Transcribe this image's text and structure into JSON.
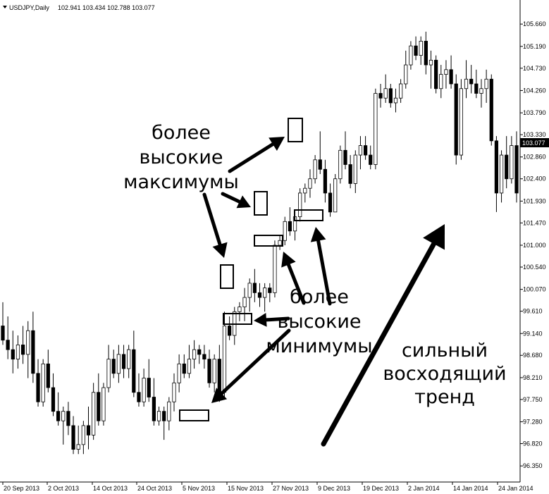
{
  "chart_data": {
    "type": "candlestick",
    "symbol_label": "USDJPY,Daily",
    "ohlc_header": "102.941 103.434 102.788 103.077",
    "current_price": 103.077,
    "current_price_label": "103.077",
    "ylim": [
      96.1,
      105.9
    ],
    "y_ticks": [
      "105.660",
      "105.190",
      "104.730",
      "104.260",
      "103.790",
      "103.330",
      "102.860",
      "102.400",
      "101.930",
      "101.470",
      "101.000",
      "100.540",
      "100.070",
      "99.610",
      "99.140",
      "98.680",
      "98.210",
      "97.750",
      "97.280",
      "96.820",
      "96.350"
    ],
    "x_ticks": [
      "20 Sep 2013",
      "2 Oct 2013",
      "14 Oct 2013",
      "24 Oct 2013",
      "5 Nov 2013",
      "15 Nov 2013",
      "27 Nov 2013",
      "9 Dec 2013",
      "19 Dec 2013",
      "2 Jan 2014",
      "14 Jan 2014",
      "24 Jan 2014"
    ],
    "candles": [
      {
        "o": 99.3,
        "h": 99.8,
        "l": 98.9,
        "c": 99.0
      },
      {
        "o": 99.0,
        "h": 99.5,
        "l": 98.6,
        "c": 98.8
      },
      {
        "o": 98.8,
        "h": 99.2,
        "l": 98.3,
        "c": 98.6
      },
      {
        "o": 98.6,
        "h": 99.1,
        "l": 98.4,
        "c": 98.9
      },
      {
        "o": 98.9,
        "h": 99.3,
        "l": 98.5,
        "c": 98.7
      },
      {
        "o": 98.7,
        "h": 99.4,
        "l": 98.2,
        "c": 99.2
      },
      {
        "o": 99.2,
        "h": 99.6,
        "l": 98.1,
        "c": 98.3
      },
      {
        "o": 98.3,
        "h": 98.6,
        "l": 97.6,
        "c": 97.7
      },
      {
        "o": 97.7,
        "h": 98.6,
        "l": 97.6,
        "c": 98.5
      },
      {
        "o": 98.5,
        "h": 98.8,
        "l": 97.9,
        "c": 98.0
      },
      {
        "o": 98.0,
        "h": 98.3,
        "l": 97.4,
        "c": 97.5
      },
      {
        "o": 97.5,
        "h": 97.9,
        "l": 97.2,
        "c": 97.3
      },
      {
        "o": 97.3,
        "h": 97.6,
        "l": 96.8,
        "c": 97.5
      },
      {
        "o": 97.5,
        "h": 97.7,
        "l": 97.0,
        "c": 97.2
      },
      {
        "o": 97.2,
        "h": 97.4,
        "l": 96.6,
        "c": 96.7
      },
      {
        "o": 96.7,
        "h": 97.2,
        "l": 96.6,
        "c": 96.8
      },
      {
        "o": 96.8,
        "h": 97.3,
        "l": 96.6,
        "c": 97.2
      },
      {
        "o": 97.2,
        "h": 97.6,
        "l": 96.7,
        "c": 97.0
      },
      {
        "o": 97.0,
        "h": 98.1,
        "l": 96.9,
        "c": 97.9
      },
      {
        "o": 97.9,
        "h": 98.3,
        "l": 97.2,
        "c": 97.3
      },
      {
        "o": 97.3,
        "h": 98.1,
        "l": 97.2,
        "c": 98.0
      },
      {
        "o": 98.0,
        "h": 98.9,
        "l": 97.9,
        "c": 98.6
      },
      {
        "o": 98.6,
        "h": 98.8,
        "l": 98.2,
        "c": 98.3
      },
      {
        "o": 98.3,
        "h": 98.9,
        "l": 98.1,
        "c": 98.7
      },
      {
        "o": 98.7,
        "h": 98.9,
        "l": 98.2,
        "c": 98.4
      },
      {
        "o": 98.4,
        "h": 98.9,
        "l": 98.2,
        "c": 98.8
      },
      {
        "o": 98.8,
        "h": 99.2,
        "l": 97.8,
        "c": 97.9
      },
      {
        "o": 97.9,
        "h": 98.3,
        "l": 97.6,
        "c": 97.7
      },
      {
        "o": 97.7,
        "h": 98.4,
        "l": 97.6,
        "c": 98.2
      },
      {
        "o": 98.2,
        "h": 98.6,
        "l": 97.7,
        "c": 97.8
      },
      {
        "o": 97.8,
        "h": 98.2,
        "l": 97.2,
        "c": 97.3
      },
      {
        "o": 97.3,
        "h": 97.6,
        "l": 97.2,
        "c": 97.5
      },
      {
        "o": 97.5,
        "h": 97.6,
        "l": 96.9,
        "c": 97.3
      },
      {
        "o": 97.3,
        "h": 97.8,
        "l": 97.1,
        "c": 97.7
      },
      {
        "o": 97.7,
        "h": 98.3,
        "l": 97.5,
        "c": 98.1
      },
      {
        "o": 98.1,
        "h": 98.7,
        "l": 97.9,
        "c": 98.5
      },
      {
        "o": 98.5,
        "h": 98.7,
        "l": 98.2,
        "c": 98.3
      },
      {
        "o": 98.3,
        "h": 98.9,
        "l": 98.2,
        "c": 98.6
      },
      {
        "o": 98.6,
        "h": 99.0,
        "l": 98.4,
        "c": 98.8
      },
      {
        "o": 98.8,
        "h": 98.9,
        "l": 98.5,
        "c": 98.7
      },
      {
        "o": 98.7,
        "h": 98.9,
        "l": 98.4,
        "c": 98.6
      },
      {
        "o": 98.6,
        "h": 98.8,
        "l": 98.0,
        "c": 98.1
      },
      {
        "o": 98.1,
        "h": 98.7,
        "l": 97.9,
        "c": 98.6
      },
      {
        "o": 98.6,
        "h": 98.9,
        "l": 97.7,
        "c": 97.9
      },
      {
        "o": 97.9,
        "h": 99.6,
        "l": 97.8,
        "c": 99.3
      },
      {
        "o": 99.3,
        "h": 99.5,
        "l": 99.0,
        "c": 99.1
      },
      {
        "o": 99.1,
        "h": 99.7,
        "l": 98.9,
        "c": 99.6
      },
      {
        "o": 99.6,
        "h": 99.8,
        "l": 99.4,
        "c": 99.7
      },
      {
        "o": 99.7,
        "h": 100.1,
        "l": 99.4,
        "c": 99.9
      },
      {
        "o": 99.9,
        "h": 100.3,
        "l": 99.6,
        "c": 100.2
      },
      {
        "o": 100.2,
        "h": 100.5,
        "l": 99.8,
        "c": 100.0
      },
      {
        "o": 100.0,
        "h": 100.2,
        "l": 99.7,
        "c": 99.9
      },
      {
        "o": 99.9,
        "h": 100.2,
        "l": 99.6,
        "c": 100.1
      },
      {
        "o": 100.1,
        "h": 100.2,
        "l": 99.8,
        "c": 100.0
      },
      {
        "o": 100.0,
        "h": 101.1,
        "l": 99.9,
        "c": 101.0
      },
      {
        "o": 101.0,
        "h": 101.2,
        "l": 100.9,
        "c": 101.1
      },
      {
        "o": 101.1,
        "h": 101.6,
        "l": 101.0,
        "c": 101.5
      },
      {
        "o": 101.5,
        "h": 101.8,
        "l": 101.2,
        "c": 101.3
      },
      {
        "o": 101.3,
        "h": 101.7,
        "l": 101.1,
        "c": 101.6
      },
      {
        "o": 101.6,
        "h": 102.2,
        "l": 101.5,
        "c": 102.1
      },
      {
        "o": 102.1,
        "h": 102.3,
        "l": 101.9,
        "c": 102.2
      },
      {
        "o": 102.2,
        "h": 102.6,
        "l": 102.0,
        "c": 102.4
      },
      {
        "o": 102.4,
        "h": 102.9,
        "l": 102.3,
        "c": 102.8
      },
      {
        "o": 102.8,
        "h": 103.4,
        "l": 102.5,
        "c": 102.6
      },
      {
        "o": 102.6,
        "h": 102.8,
        "l": 101.9,
        "c": 102.1
      },
      {
        "o": 102.1,
        "h": 102.3,
        "l": 101.6,
        "c": 101.7
      },
      {
        "o": 101.7,
        "h": 102.5,
        "l": 101.7,
        "c": 102.4
      },
      {
        "o": 102.4,
        "h": 103.1,
        "l": 102.3,
        "c": 103.0
      },
      {
        "o": 103.0,
        "h": 103.4,
        "l": 102.6,
        "c": 102.7
      },
      {
        "o": 102.7,
        "h": 102.9,
        "l": 102.2,
        "c": 102.3
      },
      {
        "o": 102.3,
        "h": 103.0,
        "l": 102.1,
        "c": 102.9
      },
      {
        "o": 102.9,
        "h": 103.3,
        "l": 102.6,
        "c": 103.1
      },
      {
        "o": 103.1,
        "h": 103.3,
        "l": 102.8,
        "c": 102.9
      },
      {
        "o": 102.9,
        "h": 103.1,
        "l": 102.6,
        "c": 102.7
      },
      {
        "o": 102.7,
        "h": 104.3,
        "l": 102.6,
        "c": 104.2
      },
      {
        "o": 104.2,
        "h": 104.4,
        "l": 103.9,
        "c": 104.1
      },
      {
        "o": 104.1,
        "h": 104.6,
        "l": 104.0,
        "c": 104.3
      },
      {
        "o": 104.3,
        "h": 104.4,
        "l": 103.9,
        "c": 104.0
      },
      {
        "o": 104.0,
        "h": 104.3,
        "l": 103.8,
        "c": 104.1
      },
      {
        "o": 104.1,
        "h": 104.5,
        "l": 104.0,
        "c": 104.4
      },
      {
        "o": 104.4,
        "h": 105.1,
        "l": 104.3,
        "c": 104.8
      },
      {
        "o": 104.8,
        "h": 105.3,
        "l": 104.7,
        "c": 105.2
      },
      {
        "o": 105.2,
        "h": 105.4,
        "l": 104.9,
        "c": 105.0
      },
      {
        "o": 105.0,
        "h": 105.4,
        "l": 104.8,
        "c": 105.3
      },
      {
        "o": 105.3,
        "h": 105.5,
        "l": 104.6,
        "c": 104.8
      },
      {
        "o": 104.8,
        "h": 105.1,
        "l": 104.3,
        "c": 104.9
      },
      {
        "o": 104.9,
        "h": 105.0,
        "l": 104.2,
        "c": 104.3
      },
      {
        "o": 104.3,
        "h": 104.8,
        "l": 104.1,
        "c": 104.6
      },
      {
        "o": 104.6,
        "h": 104.9,
        "l": 104.3,
        "c": 104.7
      },
      {
        "o": 104.7,
        "h": 105.0,
        "l": 104.3,
        "c": 104.4
      },
      {
        "o": 104.4,
        "h": 104.6,
        "l": 102.7,
        "c": 102.9
      },
      {
        "o": 102.9,
        "h": 104.5,
        "l": 102.8,
        "c": 104.3
      },
      {
        "o": 104.3,
        "h": 104.9,
        "l": 104.1,
        "c": 104.5
      },
      {
        "o": 104.5,
        "h": 104.8,
        "l": 104.2,
        "c": 104.4
      },
      {
        "o": 104.4,
        "h": 104.7,
        "l": 104.1,
        "c": 104.2
      },
      {
        "o": 104.2,
        "h": 104.5,
        "l": 103.9,
        "c": 104.3
      },
      {
        "o": 104.3,
        "h": 104.7,
        "l": 104.0,
        "c": 104.5
      },
      {
        "o": 104.5,
        "h": 104.6,
        "l": 103.1,
        "c": 103.2
      },
      {
        "o": 103.2,
        "h": 103.3,
        "l": 101.7,
        "c": 102.1
      },
      {
        "o": 102.1,
        "h": 103.0,
        "l": 101.9,
        "c": 102.9
      },
      {
        "o": 102.9,
        "h": 103.3,
        "l": 102.2,
        "c": 102.4
      },
      {
        "o": 102.4,
        "h": 103.3,
        "l": 102.3,
        "c": 103.1
      },
      {
        "o": 103.1,
        "h": 103.4,
        "l": 101.9,
        "c": 102.1
      }
    ],
    "annotations": {
      "higher_highs": [
        "более",
        "высокие",
        "максимумы"
      ],
      "higher_lows": [
        "более",
        "высокие",
        "минимумы"
      ],
      "strong_trend": [
        "сильный",
        "восходящий",
        "тренд"
      ]
    }
  }
}
